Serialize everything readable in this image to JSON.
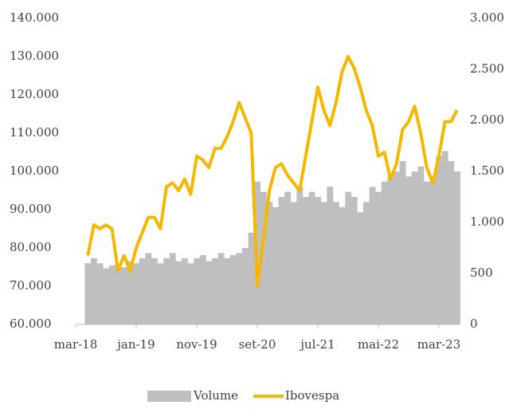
{
  "chart_data": {
    "type": "bar-line",
    "categories": [
      "mar-18",
      null,
      null,
      null,
      null,
      null,
      null,
      null,
      null,
      null,
      "jan-19",
      null,
      null,
      null,
      null,
      null,
      null,
      null,
      null,
      null,
      "nov-19",
      null,
      null,
      null,
      null,
      null,
      null,
      null,
      null,
      null,
      "set-20",
      null,
      null,
      null,
      null,
      null,
      null,
      null,
      null,
      null,
      "jul-21",
      null,
      null,
      null,
      null,
      null,
      null,
      null,
      null,
      null,
      "mai-22",
      null,
      null,
      null,
      null,
      null,
      null,
      null,
      null,
      null,
      "mar-23",
      null,
      null,
      null
    ],
    "series": [
      {
        "name": "Volume",
        "type": "bar",
        "axis": "y2",
        "color": "#bfbfbf",
        "values": [
          null,
          null,
          600,
          650,
          600,
          550,
          580,
          600,
          560,
          620,
          600,
          650,
          700,
          650,
          600,
          650,
          700,
          620,
          650,
          600,
          650,
          680,
          620,
          650,
          700,
          650,
          680,
          700,
          750,
          900,
          1400,
          1300,
          1200,
          1150,
          1250,
          1300,
          1200,
          1350,
          1250,
          1300,
          1250,
          1200,
          1350,
          1200,
          1150,
          1300,
          1250,
          1100,
          1200,
          1350,
          1300,
          1400,
          1450,
          1500,
          1600,
          1450,
          1500,
          1550,
          1400,
          1450,
          1650,
          1700,
          1600,
          1500
        ]
      },
      {
        "name": "Ibovespa",
        "type": "line",
        "axis": "y",
        "color": "#f5b800",
        "values": [
          null,
          null,
          78000,
          86000,
          85000,
          86000,
          85000,
          74000,
          78000,
          74000,
          80000,
          84000,
          88000,
          88000,
          85000,
          96000,
          97000,
          95000,
          98000,
          94000,
          104000,
          103000,
          101000,
          106000,
          106000,
          109000,
          113000,
          118000,
          114000,
          110000,
          70000,
          82000,
          95000,
          101000,
          102000,
          99000,
          97000,
          95000,
          104000,
          113000,
          122000,
          116000,
          112000,
          118000,
          126000,
          130000,
          127000,
          122000,
          116000,
          112000,
          104000,
          105000,
          98000,
          102000,
          111000,
          113000,
          117000,
          110000,
          101000,
          97000,
          104000,
          113000,
          113000,
          116000
        ]
      }
    ],
    "ylim": [
      60000,
      140000
    ],
    "yticks": [
      {
        "value": 60000,
        "label": "60.000"
      },
      {
        "value": 70000,
        "label": "70.000"
      },
      {
        "value": 80000,
        "label": "80.000"
      },
      {
        "value": 90000,
        "label": "90.000"
      },
      {
        "value": 100000,
        "label": "100.000"
      },
      {
        "value": 110000,
        "label": "110.000"
      },
      {
        "value": 120000,
        "label": "120.000"
      },
      {
        "value": 130000,
        "label": "130.000"
      },
      {
        "value": 140000,
        "label": "140.000"
      }
    ],
    "y2lim": [
      0,
      3000
    ],
    "y2ticks": [
      0,
      500,
      {
        "value": 1000,
        "label": "1.000"
      },
      {
        "value": 1500,
        "label": "1.500"
      },
      {
        "value": 2000,
        "label": "2.000"
      },
      {
        "value": 2500,
        "label": "2.500"
      },
      {
        "value": 3000,
        "label": "3.000"
      }
    ],
    "legend": "bottom"
  }
}
